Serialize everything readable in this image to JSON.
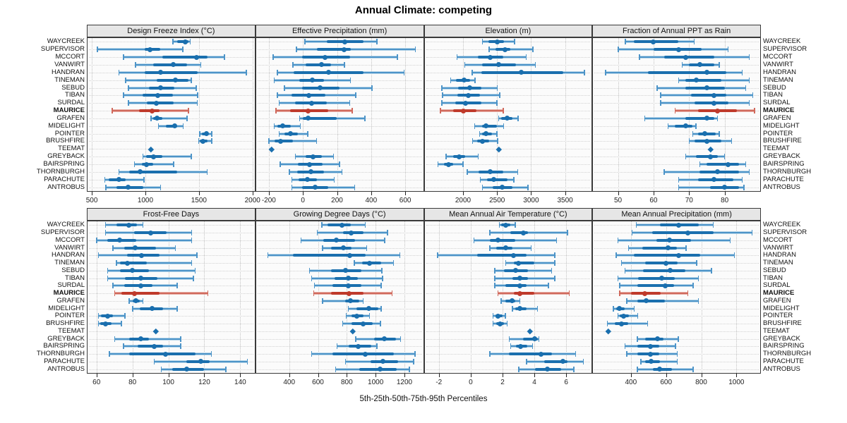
{
  "title": "Annual Climate: competing",
  "caption": "5th-25th-50th-75th-95th Percentiles",
  "percentiles": [
    "5th",
    "25th",
    "50th",
    "75th",
    "95th"
  ],
  "sites": [
    "WAYCREEK",
    "SUPERVISOR",
    "MCCORT",
    "VANWIRT",
    "HANDRAN",
    "TINEMAN",
    "SEBUD",
    "TIBAN",
    "SURDAL",
    "MAURICE",
    "GRAFEN",
    "MIDELIGHT",
    "POINTER",
    "BRUSHFIRE",
    "TEEMAT",
    "GREYBACK",
    "BAIRSPRING",
    "THORNBURGH",
    "PARACHUTE",
    "ANTROBUS"
  ],
  "highlight_site": "MAURICE",
  "colors": {
    "blue_dark": "#1a6fae",
    "blue_mid": "#4d94c8",
    "blue_pale": "#b9d7ea",
    "red_dark": "#bf3a2b",
    "red_mid": "#d0695c",
    "red_pale": "#e9b3ab",
    "header_bg": "#e6e6e6",
    "grid": "#c2c2c2"
  },
  "chart_data": [
    {
      "type": "dotplot-percentiles",
      "title": "Design Freeze Index (°C)",
      "ticks": [
        500,
        1000,
        1500,
        2000
      ],
      "xlim": [
        460,
        2020
      ],
      "values": [
        [
          1255,
          1295,
          1370,
          1400,
          1420
        ],
        [
          550,
          995,
          1045,
          1140,
          1350
        ],
        [
          795,
          1160,
          1480,
          1580,
          1740
        ],
        [
          905,
          1075,
          1260,
          1390,
          1520
        ],
        [
          750,
          995,
          1140,
          1490,
          1945
        ],
        [
          815,
          1105,
          1280,
          1400,
          1430
        ],
        [
          840,
          1035,
          1140,
          1270,
          1475
        ],
        [
          795,
          975,
          1115,
          1260,
          1490
        ],
        [
          840,
          1015,
          1100,
          1265,
          1485
        ],
        [
          690,
          940,
          1065,
          1130,
          1405
        ],
        [
          1050,
          1070,
          1110,
          1160,
          1390
        ],
        [
          1120,
          1190,
          1275,
          1300,
          1355
        ],
        [
          1505,
          1530,
          1570,
          1590,
          1620
        ],
        [
          1495,
          1505,
          1540,
          1580,
          1620
        ],
        [
          1050,
          1050,
          1050,
          1050,
          1050
        ],
        [
          975,
          1010,
          1075,
          1160,
          1430
        ],
        [
          895,
          965,
          1010,
          1070,
          1265
        ],
        [
          750,
          850,
          950,
          1300,
          1580
        ],
        [
          620,
          655,
          755,
          815,
          990
        ],
        [
          630,
          730,
          840,
          980,
          1145
        ]
      ]
    },
    {
      "type": "dotplot-percentiles",
      "title": "Effective Precipitation (mm)",
      "ticks": [
        -200,
        0,
        200,
        400,
        600
      ],
      "xlim": [
        -275,
        705
      ],
      "values": [
        [
          10,
          140,
          245,
          355,
          435
        ],
        [
          -40,
          80,
          240,
          280,
          660
        ],
        [
          -175,
          -5,
          130,
          275,
          555
        ],
        [
          -60,
          15,
          110,
          165,
          245
        ],
        [
          -150,
          -55,
          150,
          355,
          595
        ],
        [
          -170,
          -20,
          55,
          125,
          280
        ],
        [
          -110,
          -5,
          100,
          215,
          405
        ],
        [
          -150,
          -65,
          35,
          130,
          310
        ],
        [
          -140,
          -45,
          50,
          140,
          275
        ],
        [
          -160,
          -75,
          30,
          150,
          290
        ],
        [
          -20,
          0,
          30,
          200,
          365
        ],
        [
          -170,
          -150,
          -120,
          -70,
          -15
        ],
        [
          -140,
          -110,
          -75,
          -30,
          30
        ],
        [
          -200,
          -165,
          -130,
          -60,
          80
        ],
        [
          -185,
          -185,
          -185,
          -185,
          -185
        ],
        [
          -45,
          15,
          60,
          110,
          180
        ],
        [
          -135,
          -30,
          40,
          115,
          215
        ],
        [
          -80,
          -35,
          45,
          125,
          230
        ],
        [
          -65,
          -25,
          25,
          80,
          185
        ],
        [
          -65,
          -5,
          70,
          150,
          305
        ]
      ]
    },
    {
      "type": "dotplot-percentiles",
      "title": "Elevation (m)",
      "ticks": [
        2000,
        2500,
        3000,
        3500
      ],
      "xlim": [
        1435,
        3890
      ],
      "values": [
        [
          2285,
          2370,
          2500,
          2605,
          2760
        ],
        [
          2380,
          2480,
          2615,
          2700,
          3030
        ],
        [
          1910,
          2215,
          2400,
          2590,
          2930
        ],
        [
          2025,
          2285,
          2520,
          2775,
          3065
        ],
        [
          2130,
          2265,
          2855,
          3475,
          3785
        ],
        [
          1815,
          1900,
          2015,
          2105,
          2180
        ],
        [
          1685,
          1925,
          2095,
          2270,
          2505
        ],
        [
          1695,
          1920,
          2080,
          2250,
          2540
        ],
        [
          1685,
          1890,
          2035,
          2265,
          2500
        ],
        [
          1665,
          1855,
          2010,
          2200,
          2595
        ],
        [
          2520,
          2565,
          2650,
          2725,
          2810
        ],
        [
          2170,
          2275,
          2340,
          2495,
          2600
        ],
        [
          2240,
          2285,
          2340,
          2430,
          2500
        ],
        [
          2135,
          2205,
          2285,
          2385,
          2510
        ],
        [
          2530,
          2530,
          2530,
          2530,
          2530
        ],
        [
          1750,
          1850,
          1940,
          2035,
          2225
        ],
        [
          1630,
          1715,
          1790,
          1855,
          2005
        ],
        [
          2060,
          2230,
          2395,
          2590,
          2805
        ],
        [
          2250,
          2350,
          2455,
          2650,
          2750
        ],
        [
          2285,
          2435,
          2580,
          2725,
          2955
        ]
      ]
    },
    {
      "type": "dotplot-percentiles",
      "title": "Fraction of Annual PPT as Rain",
      "ticks": [
        50,
        60,
        70,
        80
      ],
      "xlim": [
        43,
        90
      ],
      "values": [
        [
          52,
          54.5,
          60,
          67,
          71.5
        ],
        [
          50,
          60,
          67,
          73.5,
          81
        ],
        [
          56,
          63,
          69,
          77,
          87
        ],
        [
          68,
          70,
          73,
          77,
          78.5
        ],
        [
          46.5,
          58.5,
          75,
          80.5,
          85
        ],
        [
          67,
          69,
          72,
          79,
          87
        ],
        [
          61,
          69,
          75,
          80,
          86
        ],
        [
          62,
          70.5,
          77,
          80.5,
          88
        ],
        [
          62,
          71.5,
          77,
          81,
          87
        ],
        [
          66,
          72.5,
          78,
          83.5,
          88.5
        ],
        [
          57.5,
          69,
          75,
          77,
          78
        ],
        [
          64,
          66,
          69,
          71,
          72
        ],
        [
          71,
          72.5,
          74.5,
          77.5,
          78.5
        ],
        [
          70,
          71.5,
          75,
          79,
          82
        ],
        [
          76,
          76,
          76,
          76,
          76
        ],
        [
          69,
          72,
          76,
          78,
          80
        ],
        [
          73,
          75,
          81,
          84,
          86
        ],
        [
          63,
          73,
          78,
          84,
          87
        ],
        [
          67,
          72.5,
          77,
          82.5,
          85
        ],
        [
          67,
          76,
          80,
          84,
          85.5
        ]
      ]
    },
    {
      "type": "dotplot-percentiles",
      "title": "Frost-Free Days",
      "ticks": [
        60,
        80,
        100,
        120,
        140
      ],
      "xlim": [
        55,
        148
      ],
      "values": [
        [
          65,
          71,
          78,
          82.5,
          86
        ],
        [
          65,
          81,
          90,
          99,
          113
        ],
        [
          60,
          66,
          73,
          82,
          113
        ],
        [
          69,
          75.5,
          81.5,
          93,
          104
        ],
        [
          61,
          77,
          85,
          95,
          116
        ],
        [
          71,
          73,
          77,
          88,
          113
        ],
        [
          66,
          73,
          80,
          89,
          115
        ],
        [
          66,
          76,
          84.5,
          94,
          114
        ],
        [
          69,
          75.5,
          84.5,
          91,
          105
        ],
        [
          70,
          74,
          81,
          95,
          122
        ],
        [
          78,
          80,
          82,
          84,
          86
        ],
        [
          80,
          84,
          91,
          97,
          105
        ],
        [
          61,
          62.5,
          66,
          69,
          76
        ],
        [
          61,
          62,
          65,
          68.5,
          74
        ],
        [
          93,
          93,
          93,
          93,
          93
        ],
        [
          70,
          78,
          84.5,
          89,
          107
        ],
        [
          75,
          83,
          92,
          97,
          107
        ],
        [
          67,
          78,
          98.5,
          115,
          124
        ],
        [
          92,
          110,
          118,
          123,
          144
        ],
        [
          96,
          102,
          110,
          120,
          132
        ]
      ]
    },
    {
      "type": "dotplot-percentiles",
      "title": "Growing Degree Days (°C)",
      "ticks": [
        400,
        600,
        800,
        1000,
        1200
      ],
      "xlim": [
        170,
        1330
      ],
      "values": [
        [
          625,
          665,
          765,
          830,
          930
        ],
        [
          595,
          775,
          830,
          915,
          1085
        ],
        [
          480,
          635,
          725,
          855,
          1065
        ],
        [
          630,
          690,
          775,
          835,
          940
        ],
        [
          250,
          425,
          820,
          930,
          1170
        ],
        [
          850,
          905,
          960,
          1040,
          1125
        ],
        [
          540,
          690,
          790,
          900,
          1045
        ],
        [
          555,
          715,
          810,
          875,
          1050
        ],
        [
          575,
          700,
          810,
          900,
          1040
        ],
        [
          570,
          690,
          815,
          915,
          1115
        ],
        [
          630,
          790,
          825,
          885,
          915
        ],
        [
          810,
          865,
          955,
          1020,
          1040
        ],
        [
          795,
          835,
          870,
          915,
          960
        ],
        [
          770,
          835,
          915,
          980,
          1035
        ],
        [
          840,
          840,
          840,
          840,
          840
        ],
        [
          860,
          990,
          1060,
          1140,
          1175
        ],
        [
          730,
          815,
          880,
          970,
          1010
        ],
        [
          555,
          700,
          930,
          1125,
          1275
        ],
        [
          790,
          965,
          1050,
          1155,
          1265
        ],
        [
          720,
          885,
          1030,
          1145,
          1235
        ]
      ]
    },
    {
      "type": "dotplot-percentiles",
      "title": "Mean Annual Air Temperature (°C)",
      "ticks": [
        -2,
        0,
        2,
        4,
        6
      ],
      "xlim": [
        -2.9,
        7.6
      ],
      "values": [
        [
          1.8,
          1.9,
          2.2,
          2.5,
          2.8
        ],
        [
          1.2,
          2.5,
          3.3,
          3.6,
          6.1
        ],
        [
          0.2,
          1.2,
          1.7,
          2.8,
          5.4
        ],
        [
          1.2,
          1.6,
          2.2,
          2.6,
          3.8
        ],
        [
          -2.1,
          0.4,
          2.7,
          3.5,
          5.3
        ],
        [
          2.2,
          2.7,
          3.0,
          4.0,
          5.3
        ],
        [
          1.5,
          2.1,
          2.8,
          3.6,
          5.1
        ],
        [
          1.5,
          2.6,
          3.1,
          3.6,
          5.3
        ],
        [
          1.5,
          2.2,
          3.1,
          3.5,
          4.9
        ],
        [
          1.7,
          2.7,
          3.1,
          4.0,
          6.2
        ],
        [
          1.9,
          2.2,
          2.6,
          2.8,
          3.1
        ],
        [
          2.6,
          2.8,
          3.1,
          3.5,
          4.2
        ],
        [
          1.4,
          1.55,
          1.7,
          2.0,
          2.2
        ],
        [
          1.4,
          1.6,
          1.85,
          2.1,
          2.3
        ],
        [
          3.7,
          3.7,
          3.7,
          3.7,
          3.7
        ],
        [
          2.4,
          3.3,
          4.0,
          4.2,
          4.3
        ],
        [
          2.5,
          2.85,
          3.15,
          3.55,
          3.9
        ],
        [
          1.2,
          2.4,
          4.4,
          5.1,
          6.6
        ],
        [
          3.5,
          4.6,
          5.8,
          6.1,
          7.1
        ],
        [
          3.0,
          4.05,
          4.8,
          5.7,
          6.5
        ]
      ]
    },
    {
      "type": "dotplot-percentiles",
      "title": "Mean Annual Precipitation (mm)",
      "ticks": [
        400,
        600,
        800,
        1000
      ],
      "xlim": [
        185,
        1135
      ],
      "values": [
        [
          430,
          565,
          670,
          785,
          870
        ],
        [
          405,
          520,
          725,
          870,
          1090
        ],
        [
          325,
          545,
          620,
          740,
          965
        ],
        [
          385,
          465,
          610,
          660,
          715
        ],
        [
          315,
          415,
          670,
          795,
          990
        ],
        [
          345,
          480,
          600,
          665,
          775
        ],
        [
          365,
          470,
          625,
          710,
          860
        ],
        [
          325,
          440,
          575,
          650,
          785
        ],
        [
          335,
          435,
          595,
          645,
          755
        ],
        [
          335,
          400,
          480,
          570,
          725
        ],
        [
          375,
          435,
          485,
          595,
          785
        ],
        [
          300,
          315,
          335,
          365,
          420
        ],
        [
          325,
          335,
          360,
          390,
          440
        ],
        [
          265,
          310,
          345,
          385,
          495
        ],
        [
          270,
          270,
          270,
          270,
          270
        ],
        [
          435,
          480,
          550,
          585,
          670
        ],
        [
          365,
          435,
          510,
          560,
          655
        ],
        [
          375,
          435,
          510,
          560,
          665
        ],
        [
          455,
          480,
          515,
          565,
          665
        ],
        [
          435,
          525,
          565,
          635,
          755
        ]
      ]
    }
  ]
}
